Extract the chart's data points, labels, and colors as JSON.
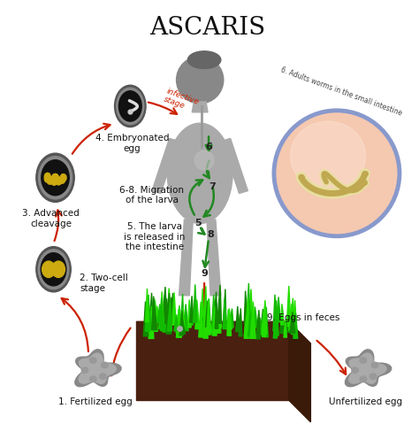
{
  "title": "ASCARIS",
  "title_fontsize": 20,
  "background_color": "#ffffff",
  "labels": {
    "embryonated_egg": "4. Embryonated\negg",
    "advanced_cleavage": "3. Advanced\ncleavage",
    "two_cell": "2. Two-cell\nstage",
    "fertilized": "1. Fertilized egg",
    "unfertilized": "Unfertilized egg",
    "migration": "6-8. Migration\nof the larva",
    "larva_released": "5. The larva\nis released in\nthe intestine",
    "eggs_feces": "9. Eggs in feces",
    "adults": "6. Adults worms in the small intestine",
    "infective": "infective\nstage"
  },
  "red": "#cc2200",
  "green_dark": "#1a7a1a",
  "green_arrow": "#228822",
  "grass_bright": "#22dd00",
  "grass_mid": "#11bb00",
  "grass_dark": "#118800",
  "soil_top": "#7a4030",
  "soil_side": "#4a2010",
  "human_body": "#aaaaaa",
  "human_head": "#888888",
  "intestine_fill": "#f5c8b0",
  "intestine_border": "#8899cc",
  "worm_fill": "#e8dea0",
  "worm_line": "#c0a850",
  "egg_shell_outer": "#555555",
  "egg_shell_mid": "#888888",
  "egg_core": "#111111",
  "egg_yolk": "#ccaa10",
  "unfert_dark": "#888888",
  "unfert_light": "#bbbbbb"
}
